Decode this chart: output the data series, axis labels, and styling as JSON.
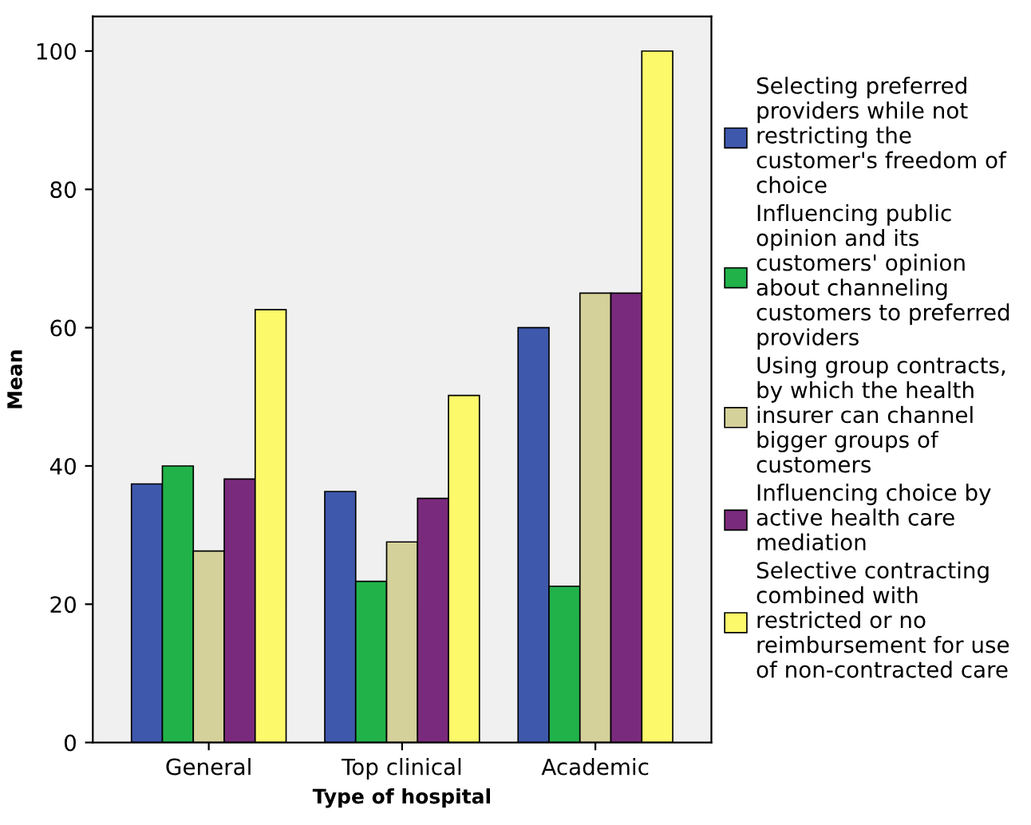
{
  "chart_data": {
    "type": "bar",
    "xlabel": "Type of hospital",
    "ylabel": "Mean",
    "categories": [
      "General",
      "Top clinical",
      "Academic"
    ],
    "series": [
      {
        "name": "Selecting preferred providers while not restricting the customer's freedom of choice",
        "color": "#3e58ac",
        "values": [
          37.4,
          36.3,
          60
        ]
      },
      {
        "name": "Influencing public opinion and its customers' opinion about channeling customers to preferred providers",
        "color": "#21b24a",
        "values": [
          40,
          23.3,
          22.6
        ]
      },
      {
        "name": "Using group contracts, by which the health insurer can channel bigger groups of customers",
        "color": "#d5d19a",
        "values": [
          27.7,
          29,
          65
        ]
      },
      {
        "name": "Influencing choice by active health care mediation",
        "color": "#7a2a7c",
        "values": [
          38.1,
          35.3,
          65
        ]
      },
      {
        "name": "Selective contracting combined with restricted or no reimbursement for use of non-contracted care",
        "color": "#fcf96b",
        "values": [
          62.6,
          50.2,
          100
        ]
      }
    ],
    "ylim": [
      0,
      105
    ],
    "yticks": [
      0,
      20,
      40,
      60,
      80,
      100
    ],
    "legend": "right"
  }
}
